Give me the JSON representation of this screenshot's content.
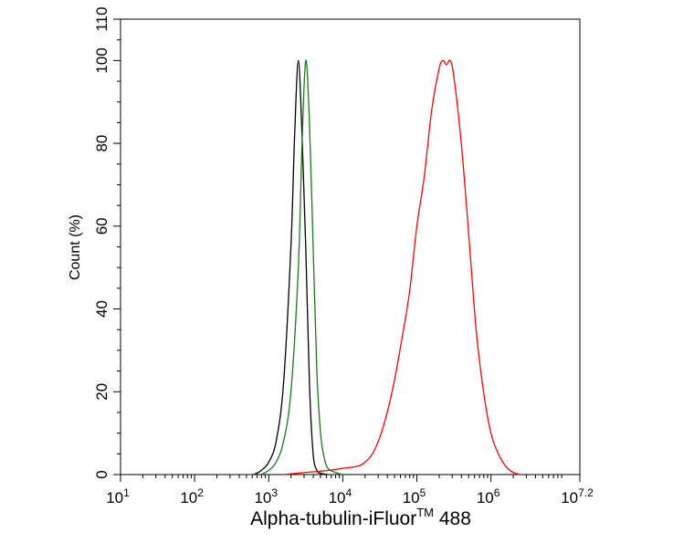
{
  "chart_data": {
    "type": "line",
    "title": "",
    "xlabel": "Alpha-tubulin-iFluor",
    "xlabel_superscript": "TM",
    "xlabel_suffix": " 488",
    "ylabel": "Count  (%)",
    "x_scale": "log10",
    "xlim": [
      10,
      15848932
    ],
    "ylim": [
      0,
      110
    ],
    "grid": false,
    "legend": "none",
    "x_ticks": [
      {
        "base": "10",
        "exp": "1"
      },
      {
        "base": "10",
        "exp": "2"
      },
      {
        "base": "10",
        "exp": "3"
      },
      {
        "base": "10",
        "exp": "4"
      },
      {
        "base": "10",
        "exp": "5"
      },
      {
        "base": "10",
        "exp": "6"
      },
      {
        "base": "10",
        "exp": "7.2"
      }
    ],
    "y_ticks": [
      "0",
      "20",
      "40",
      "60",
      "80",
      "100",
      "110"
    ],
    "series": [
      {
        "color": "#000000",
        "x": [
          631,
          794,
          1000,
          1259,
          1585,
          1995,
          2239,
          2512,
          2818,
          3162,
          3548,
          3981,
          4467,
          5012,
          6310
        ],
        "y": [
          0,
          1,
          3,
          8,
          22,
          55,
          82,
          100,
          82,
          55,
          22,
          5,
          1,
          0.3,
          0
        ]
      },
      {
        "color": "#1a7a1a",
        "x": [
          794,
          1000,
          1259,
          1585,
          1995,
          2512,
          2818,
          3162,
          3548,
          3981,
          4467,
          5012,
          5623,
          6310,
          7943,
          10000
        ],
        "y": [
          0,
          1,
          3,
          8,
          20,
          50,
          80,
          100,
          85,
          55,
          25,
          10,
          4,
          1.5,
          0.5,
          0
        ]
      },
      {
        "color": "#ff0000",
        "x": [
          1585,
          3162,
          6310,
          10000,
          15849,
          19953,
          25119,
          31623,
          39811,
          50119,
          63096,
          79433,
          100000,
          125893,
          158489,
          199526,
          223872,
          251189,
          281838,
          316228,
          398107,
          501187,
          630957,
          794328,
          1000000,
          1258925,
          1584893,
          1995262,
          2511886
        ],
        "y": [
          0,
          0.5,
          1,
          1.5,
          2,
          3,
          5,
          9,
          15,
          23,
          33,
          44,
          60,
          72,
          88,
          98,
          100,
          99,
          100,
          96,
          80,
          58,
          35,
          20,
          10,
          5,
          2,
          0.5,
          0
        ]
      }
    ]
  }
}
